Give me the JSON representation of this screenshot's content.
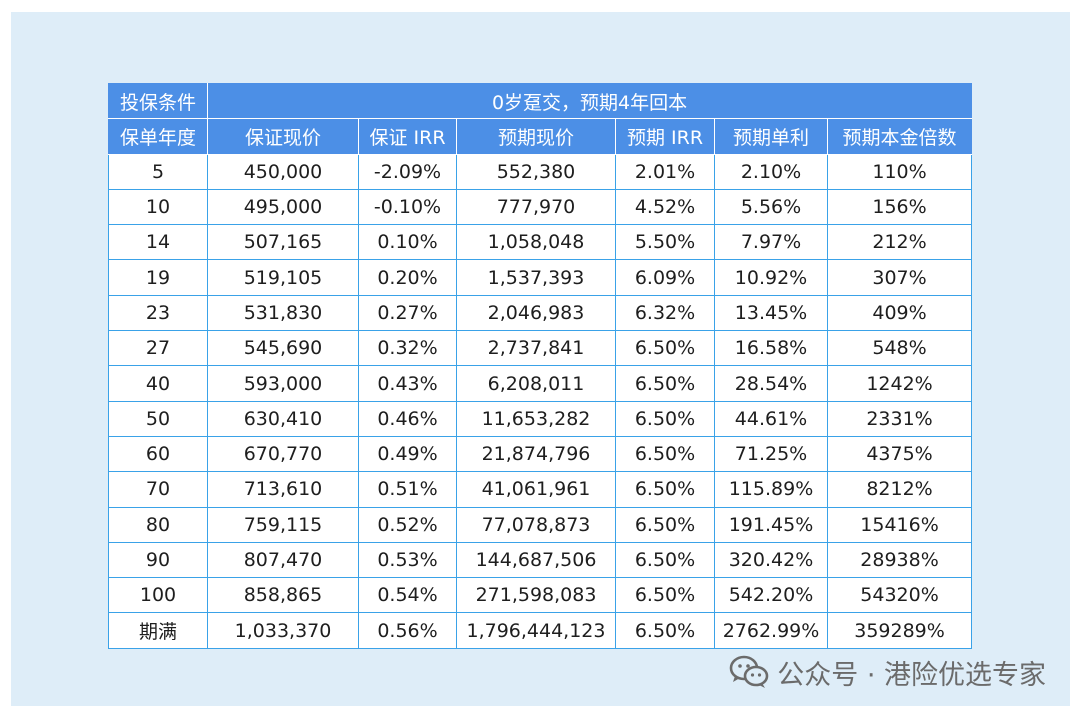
{
  "table": {
    "condition_label": "投保条件",
    "condition_value": "0岁趸交，预期4年回本",
    "headers": [
      "保单年度",
      "保证现价",
      "保证 IRR",
      "预期现价",
      "预期 IRR",
      "预期单利",
      "预期本金倍数"
    ],
    "rows": [
      [
        "5",
        "450,000",
        "-2.09%",
        "552,380",
        "2.01%",
        "2.10%",
        "110%"
      ],
      [
        "10",
        "495,000",
        "-0.10%",
        "777,970",
        "4.52%",
        "5.56%",
        "156%"
      ],
      [
        "14",
        "507,165",
        "0.10%",
        "1,058,048",
        "5.50%",
        "7.97%",
        "212%"
      ],
      [
        "19",
        "519,105",
        "0.20%",
        "1,537,393",
        "6.09%",
        "10.92%",
        "307%"
      ],
      [
        "23",
        "531,830",
        "0.27%",
        "2,046,983",
        "6.32%",
        "13.45%",
        "409%"
      ],
      [
        "27",
        "545,690",
        "0.32%",
        "2,737,841",
        "6.50%",
        "16.58%",
        "548%"
      ],
      [
        "40",
        "593,000",
        "0.43%",
        "6,208,011",
        "6.50%",
        "28.54%",
        "1242%"
      ],
      [
        "50",
        "630,410",
        "0.46%",
        "11,653,282",
        "6.50%",
        "44.61%",
        "2331%"
      ],
      [
        "60",
        "670,770",
        "0.49%",
        "21,874,796",
        "6.50%",
        "71.25%",
        "4375%"
      ],
      [
        "70",
        "713,610",
        "0.51%",
        "41,061,961",
        "6.50%",
        "115.89%",
        "8212%"
      ],
      [
        "80",
        "759,115",
        "0.52%",
        "77,078,873",
        "6.50%",
        "191.45%",
        "15416%"
      ],
      [
        "90",
        "807,470",
        "0.53%",
        "144,687,506",
        "6.50%",
        "320.42%",
        "28938%"
      ],
      [
        "100",
        "858,865",
        "0.54%",
        "271,598,083",
        "6.50%",
        "542.20%",
        "54320%"
      ],
      [
        "期满",
        "1,033,370",
        "0.56%",
        "1,796,444,123",
        "6.50%",
        "2762.99%",
        "359289%"
      ]
    ]
  },
  "watermark": {
    "icon": "wechat-icon",
    "text": "公众号 · 港险优选专家"
  }
}
